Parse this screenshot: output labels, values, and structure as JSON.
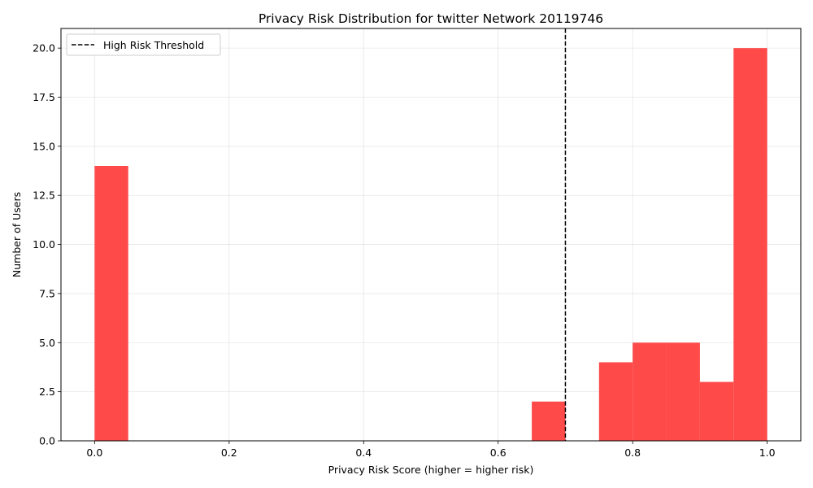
{
  "chart_data": {
    "type": "bar",
    "title": "Privacy Risk Distribution for twitter Network 20119746",
    "xlabel": "Privacy Risk Score (higher = higher risk)",
    "ylabel": "Number of Users",
    "xlim": [
      -0.05,
      1.05
    ],
    "ylim": [
      0,
      21
    ],
    "bin_width": 0.05,
    "bins": [
      {
        "x0": 0.0,
        "x1": 0.05,
        "count": 14
      },
      {
        "x0": 0.65,
        "x1": 0.7,
        "count": 2
      },
      {
        "x0": 0.75,
        "x1": 0.8,
        "count": 4
      },
      {
        "x0": 0.8,
        "x1": 0.85,
        "count": 5
      },
      {
        "x0": 0.85,
        "x1": 0.9,
        "count": 5
      },
      {
        "x0": 0.9,
        "x1": 0.95,
        "count": 3
      },
      {
        "x0": 0.95,
        "x1": 1.0,
        "count": 20
      }
    ],
    "x_ticks": [
      0.0,
      0.2,
      0.4,
      0.6,
      0.8,
      1.0
    ],
    "x_tick_labels": [
      "0.0",
      "0.2",
      "0.4",
      "0.6",
      "0.8",
      "1.0"
    ],
    "y_ticks": [
      0,
      2.5,
      5,
      7.5,
      10,
      12.5,
      15,
      17.5,
      20
    ],
    "y_tick_labels": [
      "0.0",
      "2.5",
      "5.0",
      "7.5",
      "10.0",
      "12.5",
      "15.0",
      "17.5",
      "20.0"
    ],
    "bar_color": "#ff4a4a",
    "grid": true,
    "threshold": {
      "x": 0.7,
      "label": "High Risk Threshold",
      "color": "#000000",
      "style": "dashed"
    },
    "legend_position": "top-left"
  }
}
